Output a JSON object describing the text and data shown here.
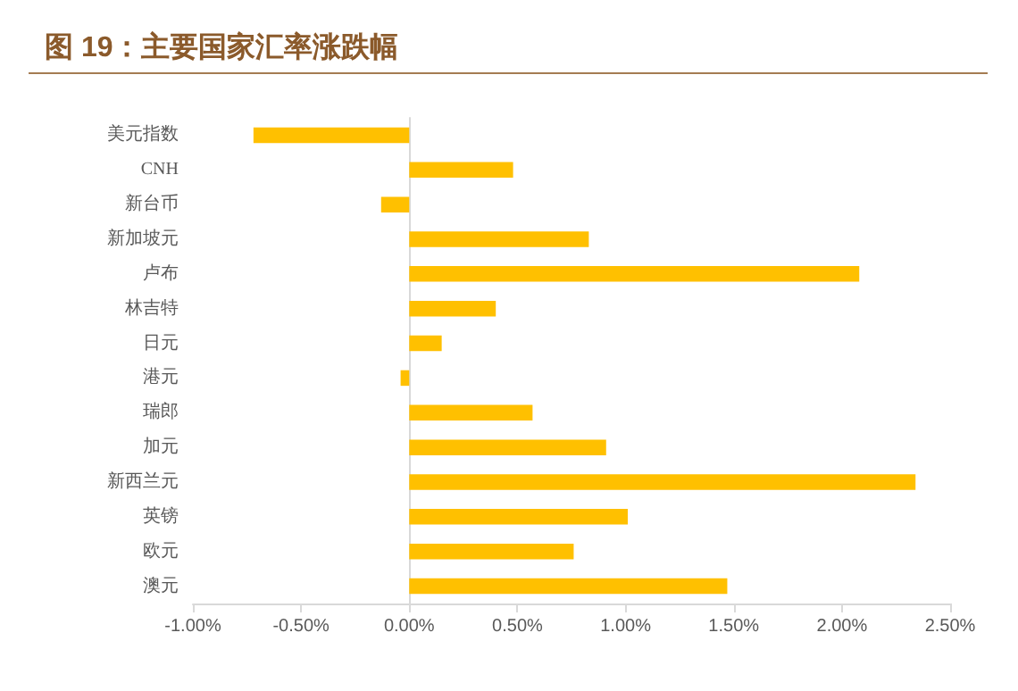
{
  "chart_data": {
    "type": "bar",
    "orientation": "horizontal",
    "title": "图 19：主要国家汇率涨跌幅",
    "categories": [
      "美元指数",
      "CNH",
      "新台币",
      "新加坡元",
      "卢布",
      "林吉特",
      "日元",
      "港元",
      "瑞郎",
      "加元",
      "新西兰元",
      "英镑",
      "欧元",
      "澳元"
    ],
    "values": [
      -0.72,
      0.48,
      -0.13,
      0.83,
      2.08,
      0.4,
      0.15,
      -0.04,
      0.57,
      0.91,
      2.34,
      1.01,
      0.76,
      1.47
    ],
    "color": "#ffc000",
    "xlim": [
      -1,
      2.5
    ],
    "xticks": [
      {
        "value": -1,
        "label": "-1.00%"
      },
      {
        "value": -0.5,
        "label": "-0.50%"
      },
      {
        "value": 0,
        "label": "0.00%"
      },
      {
        "value": 0.5,
        "label": "0.50%"
      },
      {
        "value": 1,
        "label": "1.00%"
      },
      {
        "value": 1.5,
        "label": "1.50%"
      },
      {
        "value": 2,
        "label": "2.00%"
      },
      {
        "value": 2.5,
        "label": "2.50%"
      }
    ],
    "data_labels": false
  }
}
